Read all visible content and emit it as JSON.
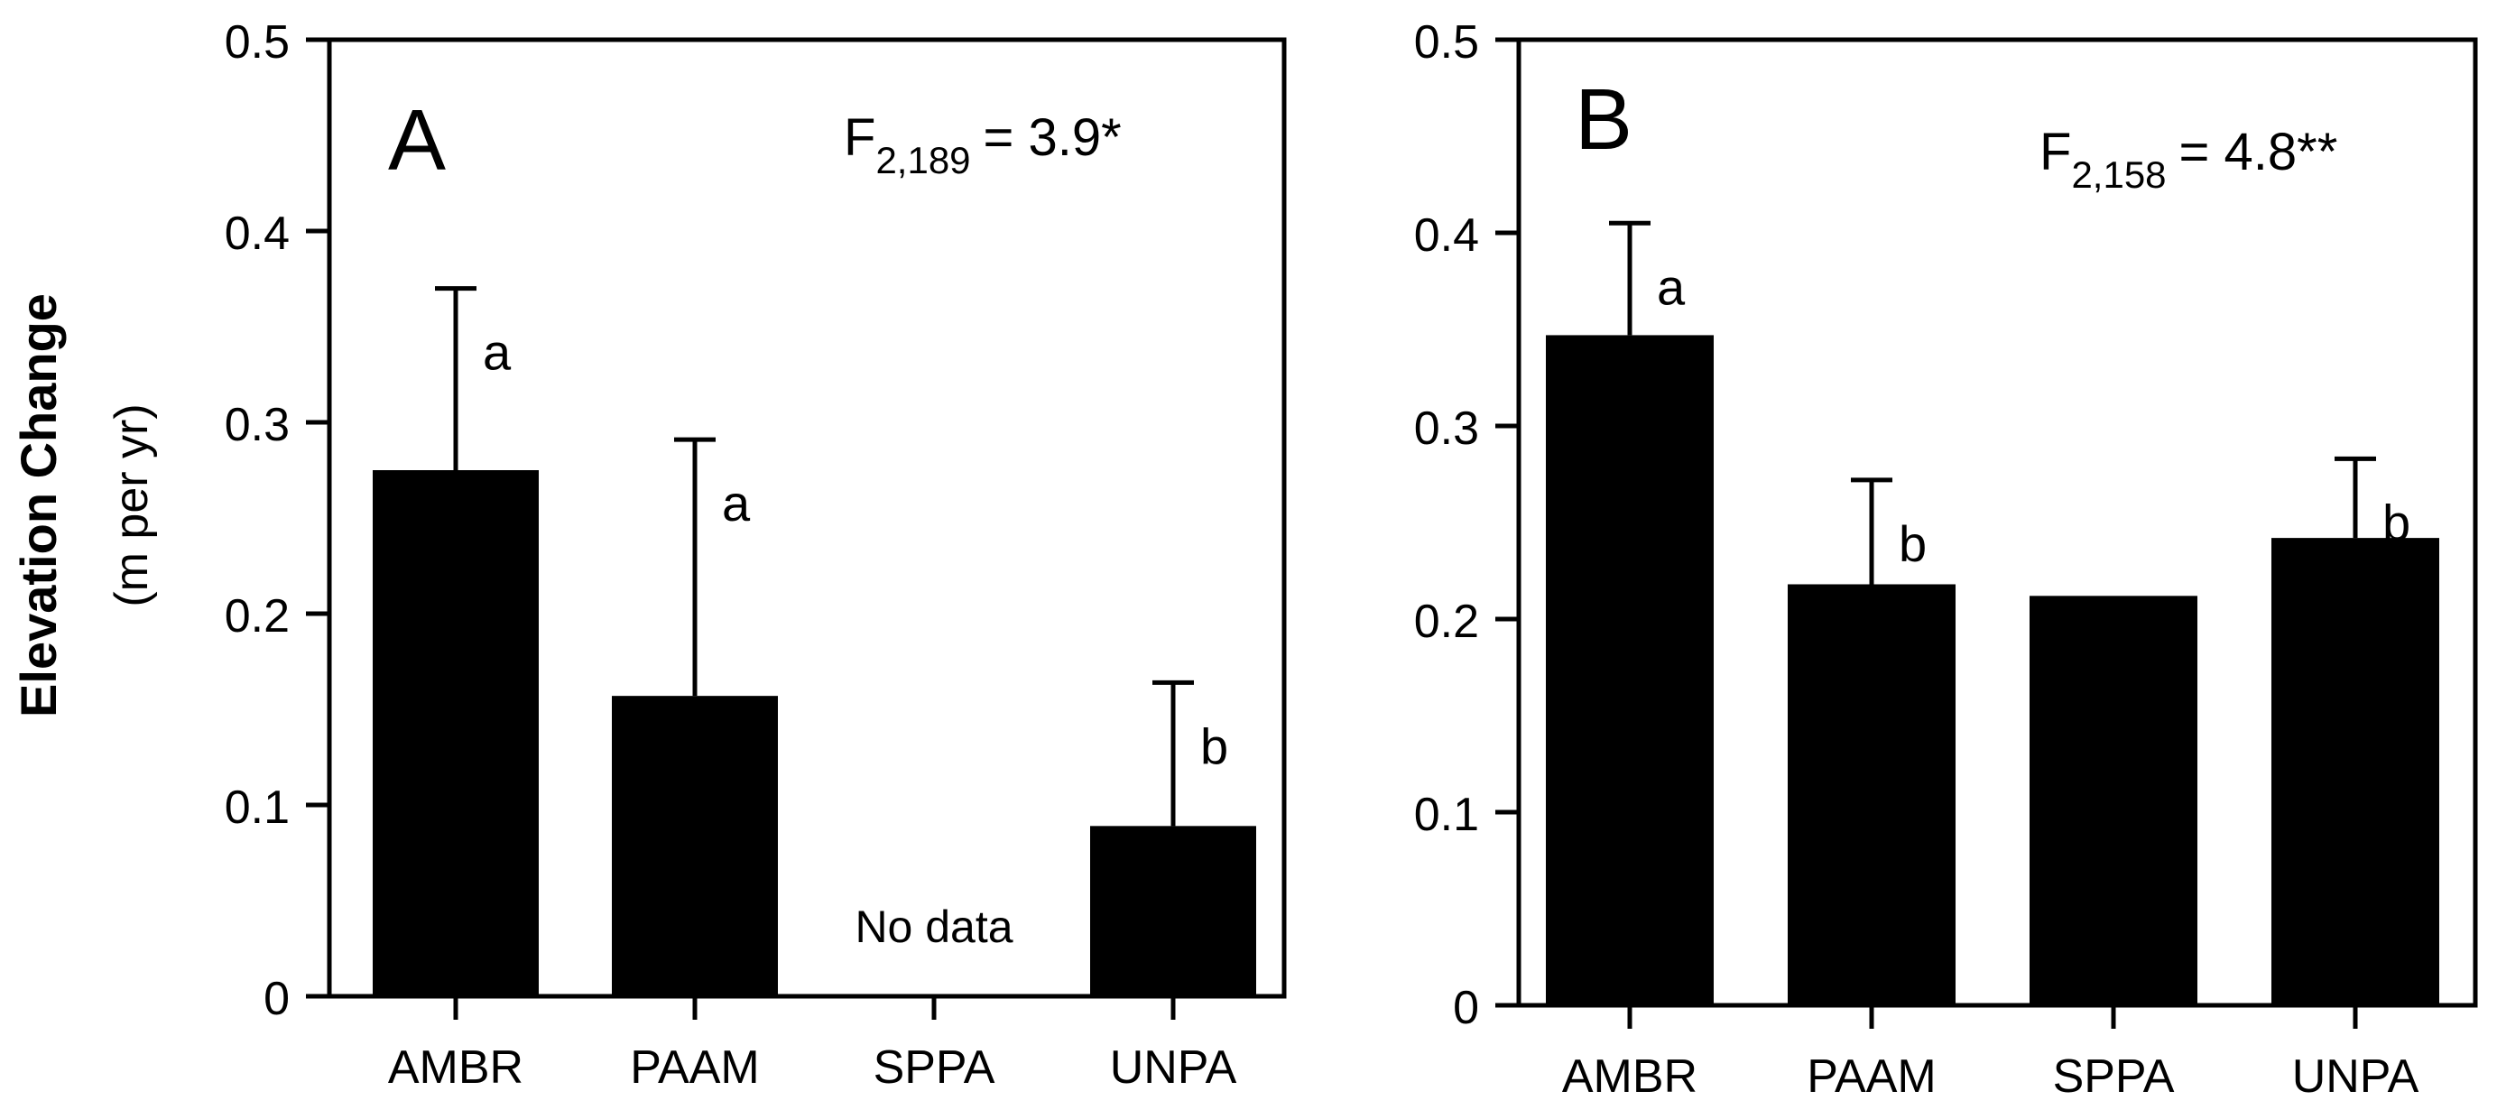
{
  "figure": {
    "ylabel_main": "Elevation Change",
    "ylabel_sub": "(m per yr)"
  },
  "chart_data": [
    {
      "type": "bar",
      "panel_label": "A",
      "stat_prefix": "F",
      "stat_df": "2,189",
      "stat_value": "= 3.9*",
      "categories": [
        "AMBR",
        "PAAM",
        "SPPA",
        "UNPA"
      ],
      "values": [
        0.275,
        0.157,
        null,
        0.089
      ],
      "errors": [
        0.095,
        0.134,
        null,
        0.075
      ],
      "letters": [
        "a",
        "a",
        "",
        "b"
      ],
      "annotations": [
        {
          "category": "SPPA",
          "text": "No data"
        }
      ],
      "ylim": [
        0,
        0.5
      ],
      "yticks": [
        "0",
        "0.1",
        "0.2",
        "0.3",
        "0.4",
        "0.5"
      ],
      "ylabel": "Elevation Change (m per yr)",
      "xlabel": "",
      "bar_color": "#000000"
    },
    {
      "type": "bar",
      "panel_label": "B",
      "stat_prefix": "F",
      "stat_df": "2,158",
      "stat_value": "= 4.8**",
      "categories": [
        "AMBR",
        "PAAM",
        "SPPA",
        "UNPA"
      ],
      "values": [
        0.347,
        0.218,
        0.212,
        0.242
      ],
      "errors": [
        0.058,
        0.054,
        null,
        0.041
      ],
      "letters": [
        "a",
        "b",
        "",
        "b"
      ],
      "annotations": [],
      "ylim": [
        0,
        0.5
      ],
      "yticks": [
        "0",
        "0.1",
        "0.2",
        "0.3",
        "0.4",
        "0.5"
      ],
      "ylabel": "",
      "xlabel": "",
      "bar_color": "#000000"
    }
  ]
}
